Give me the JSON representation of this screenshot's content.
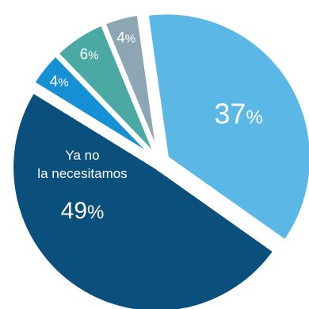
{
  "chart_data": {
    "type": "pie",
    "slices": [
      {
        "label": "",
        "value": 37,
        "display": "37%",
        "color": "#5bb8e6"
      },
      {
        "label": "Ya no la necesitamos",
        "value": 49,
        "display": "49%",
        "color": "#0b4f7c"
      },
      {
        "label": "",
        "value": 4,
        "display": "4%",
        "color": "#1590d4"
      },
      {
        "label": "",
        "value": 6,
        "display": "6%",
        "color": "#4aa9a3"
      },
      {
        "label": "",
        "value": 4,
        "display": "4%",
        "color": "#8ea6b4"
      }
    ],
    "label_lines": {
      "main_line1": "Ya no",
      "main_line2": "la necesitamos"
    },
    "percent_sign": "%"
  }
}
